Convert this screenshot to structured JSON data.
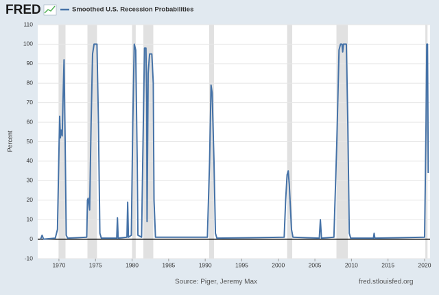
{
  "chart_data": {
    "type": "line",
    "logo": "FRED",
    "title": "Smoothed U.S. Recession Probabilities",
    "y_label": "Percent",
    "source": "Source: Piger, Jeremy Max",
    "site": "fred.stlouisfed.org",
    "xlim": [
      1967.1,
      2020.75
    ],
    "ylim": [
      -10,
      110
    ],
    "xticks": [
      1970,
      1975,
      1980,
      1985,
      1990,
      1995,
      2000,
      2005,
      2010,
      2015,
      2020
    ],
    "yticks": [
      -10,
      0,
      10,
      20,
      30,
      40,
      50,
      60,
      70,
      80,
      90,
      100,
      110
    ],
    "grid": true,
    "shade_color": "#e1e1e1",
    "recessions": [
      [
        1969.95,
        1970.9
      ],
      [
        1973.9,
        1975.2
      ],
      [
        1980.0,
        1980.5
      ],
      [
        1981.55,
        1982.9
      ],
      [
        1990.55,
        1991.2
      ],
      [
        2001.2,
        2001.9
      ],
      [
        2007.95,
        2009.5
      ],
      [
        2020.1,
        2020.4
      ]
    ],
    "series": [
      {
        "name": "Smoothed U.S. Recession Probabilities",
        "color": "#4572a7",
        "x": [
          1967.5,
          1967.7,
          1967.9,
          1969.5,
          1969.8,
          1970.0,
          1970.1,
          1970.2,
          1970.3,
          1970.45,
          1970.55,
          1970.7,
          1970.85,
          1971.0,
          1971.2,
          1973.8,
          1973.9,
          1974.0,
          1974.2,
          1974.4,
          1974.6,
          1974.8,
          1975.2,
          1975.4,
          1975.6,
          1975.8,
          1977.9,
          1978.0,
          1978.1,
          1979.3,
          1979.4,
          1979.5,
          1979.9,
          1980.1,
          1980.3,
          1980.5,
          1980.7,
          1980.8,
          1981.3,
          1981.5,
          1981.7,
          1981.9,
          1982.0,
          1982.05,
          1982.2,
          1982.4,
          1982.7,
          1982.9,
          1983.0,
          1983.2,
          1990.3,
          1990.6,
          1990.8,
          1990.95,
          1991.2,
          1991.4,
          1991.6,
          2000.8,
          2001.0,
          2001.2,
          2001.35,
          2001.5,
          2001.8,
          2002.0,
          2005.6,
          2005.75,
          2005.9,
          2007.6,
          2008.0,
          2008.3,
          2008.5,
          2008.7,
          2008.8,
          2008.9,
          2009.3,
          2009.5,
          2009.7,
          2009.9,
          2013.0,
          2013.1,
          2013.2,
          2020.0,
          2020.2,
          2020.3,
          2020.4,
          2020.5
        ],
        "values": [
          0,
          2,
          0,
          0.5,
          5,
          45,
          63,
          52,
          56,
          53,
          70,
          92,
          50,
          2,
          0.5,
          1,
          20,
          21,
          15,
          60,
          95,
          100,
          100,
          60,
          3,
          0.5,
          0.5,
          11,
          0.5,
          1,
          19,
          1,
          2,
          60,
          100,
          97,
          40,
          2,
          1,
          50,
          98,
          98,
          70,
          9,
          85,
          95,
          95,
          80,
          20,
          1,
          1,
          40,
          79,
          75,
          40,
          3,
          0.5,
          1,
          20,
          33,
          35,
          28,
          5,
          1,
          0.5,
          10,
          0.5,
          1,
          50,
          97,
          100,
          100,
          96,
          100,
          100,
          60,
          3,
          0.5,
          0.5,
          3,
          0.5,
          1,
          60,
          100,
          100,
          34
        ]
      }
    ]
  }
}
